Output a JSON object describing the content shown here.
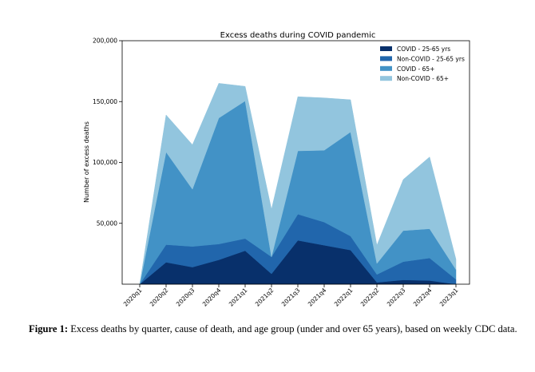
{
  "chart_data": {
    "type": "area",
    "stacked": true,
    "title": "Excess deaths during COVID pandemic",
    "xlabel": "",
    "ylabel": "Number of excess deaths",
    "ylim": [
      0,
      200000
    ],
    "yticks": [
      50000,
      100000,
      150000,
      200000
    ],
    "ytick_labels": [
      "50,000",
      "100,000",
      "150,000",
      "200,000"
    ],
    "categories": [
      "2020q1",
      "2020q2",
      "2020q3",
      "2020q4",
      "2021q1",
      "2021q2",
      "2021q3",
      "2021q4",
      "2022q1",
      "2022q2",
      "2022q3",
      "2022q4",
      "2023q1"
    ],
    "grid": false,
    "legend_position": "top-right",
    "series": [
      {
        "name": "COVID - 25-65 yrs",
        "color": "#08306b",
        "values": [
          0,
          18000,
          14000,
          20000,
          27500,
          8500,
          36000,
          32000,
          28000,
          1500,
          3500,
          3000,
          0
        ]
      },
      {
        "name": "Non-COVID - 25-65 yrs",
        "color": "#2166ac",
        "values": [
          0,
          14500,
          17000,
          13000,
          10000,
          14000,
          21500,
          19000,
          11500,
          6500,
          15000,
          18500,
          4000
        ]
      },
      {
        "name": "COVID - 65+",
        "color": "#4292c6",
        "values": [
          0,
          76000,
          47000,
          103500,
          113000,
          0,
          52000,
          59000,
          85500,
          9000,
          25500,
          24000,
          8000
        ]
      },
      {
        "name": "Non-COVID - 65+",
        "color": "#92c5de",
        "values": [
          0,
          30500,
          36500,
          28500,
          12000,
          39000,
          44500,
          43000,
          26500,
          15000,
          42000,
          59000,
          8500
        ]
      }
    ]
  },
  "caption": {
    "label": "Figure 1:",
    "text": " Excess deaths by quarter, cause of death, and age group (under and over 65 years), based on weekly CDC data."
  }
}
